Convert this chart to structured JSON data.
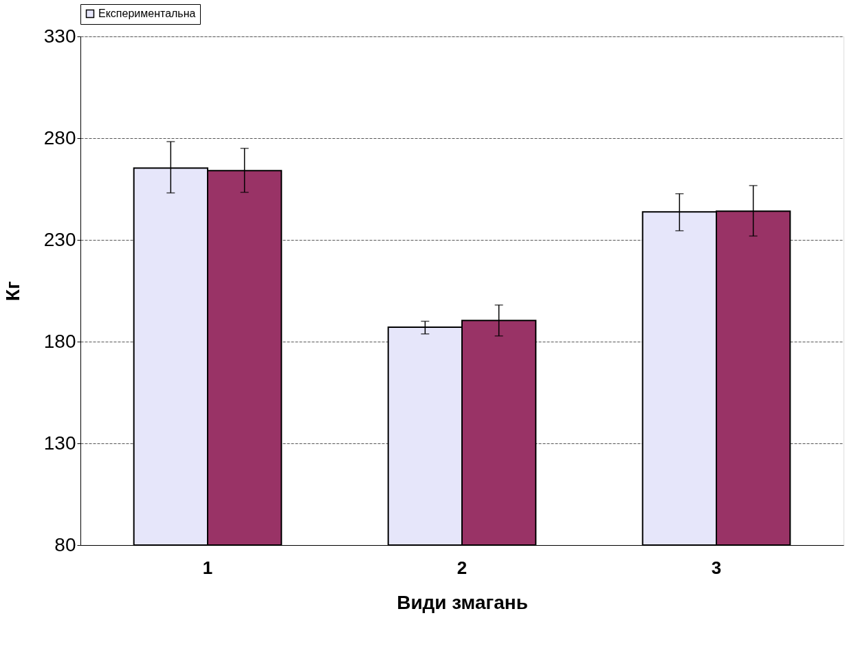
{
  "chart_data": {
    "type": "bar",
    "xlabel": "Види змагань",
    "ylabel": "Кг",
    "categories": [
      "1",
      "2",
      "3"
    ],
    "series": [
      {
        "name": "Експериментальна",
        "color": "#e6e6fa",
        "values": [
          265.3,
          187.1,
          243.8
        ],
        "errors": [
          [
            253.1,
            278.3
          ],
          [
            183.8,
            190.0
          ],
          [
            234.5,
            252.7
          ]
        ]
      },
      {
        "color": "#993366",
        "values": [
          264.0,
          190.4,
          244.1
        ],
        "errors": [
          [
            253.4,
            275.0
          ],
          [
            182.8,
            198.0
          ],
          [
            231.9,
            256.7
          ]
        ]
      }
    ],
    "ylim": [
      80,
      330
    ],
    "yticks": [
      80,
      130,
      180,
      230,
      280,
      330
    ],
    "grid": "y",
    "legend": "top"
  }
}
